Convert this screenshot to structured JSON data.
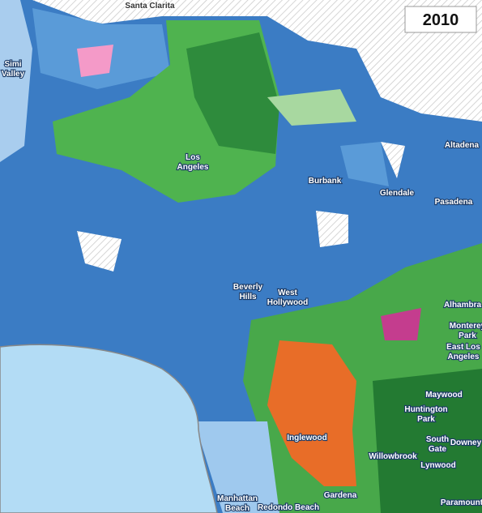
{
  "title": "2010",
  "places": [
    {
      "lines": [
        "Santa Clarita"
      ]
    },
    {
      "lines": [
        "Simi",
        "Valley"
      ]
    },
    {
      "lines": [
        "Los",
        "Angeles"
      ]
    },
    {
      "lines": [
        "Burbank"
      ]
    },
    {
      "lines": [
        "Glendale"
      ]
    },
    {
      "lines": [
        "Pasadena"
      ]
    },
    {
      "lines": [
        "Altadena"
      ]
    },
    {
      "lines": [
        "Beverly",
        "Hills"
      ]
    },
    {
      "lines": [
        "West",
        "Hollywood"
      ]
    },
    {
      "lines": [
        "Alhambra"
      ]
    },
    {
      "lines": [
        "Monterey",
        "Park"
      ]
    },
    {
      "lines": [
        "East Los",
        "Angeles"
      ]
    },
    {
      "lines": [
        "Maywood"
      ]
    },
    {
      "lines": [
        "Huntington",
        "Park"
      ]
    },
    {
      "lines": [
        "South",
        "Gate"
      ]
    },
    {
      "lines": [
        "Downey"
      ]
    },
    {
      "lines": [
        "Lynwood"
      ]
    },
    {
      "lines": [
        "Inglewood"
      ]
    },
    {
      "lines": [
        "Willowbrook"
      ]
    },
    {
      "lines": [
        "Gardena"
      ]
    },
    {
      "lines": [
        "Manhattan",
        "Beach"
      ]
    },
    {
      "lines": [
        "Redondo Beach"
      ]
    },
    {
      "lines": [
        "Paramount"
      ]
    }
  ]
}
